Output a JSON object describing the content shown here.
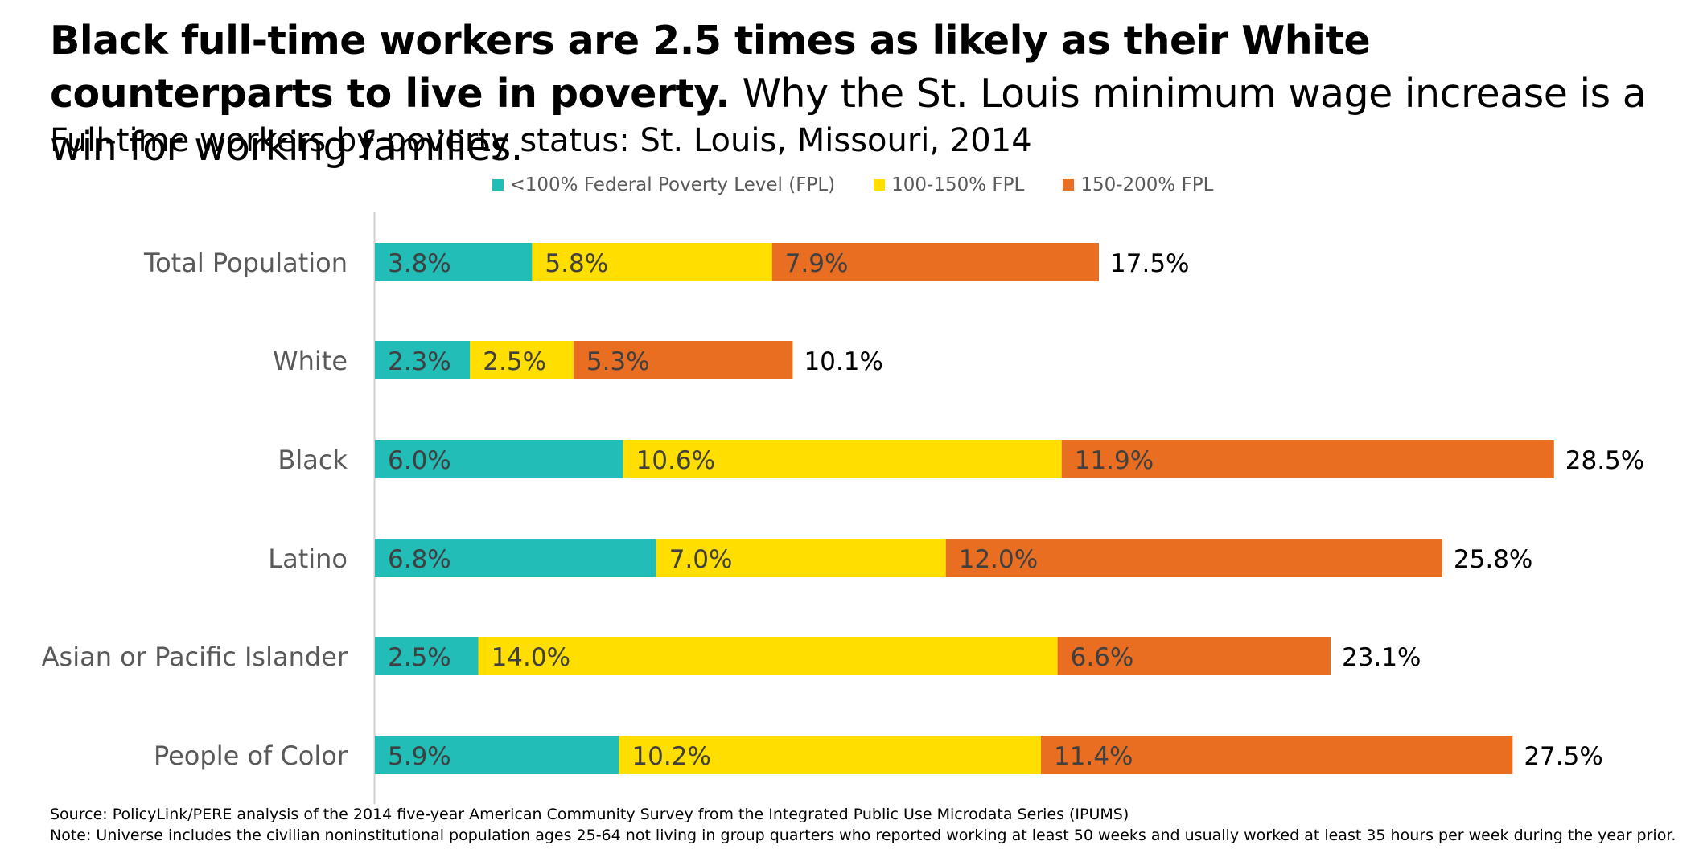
{
  "title": {
    "bold": "Black full-time workers are 2.5 times as likely as their White counterparts to live in poverty.",
    "regular": "Why the St. Louis minimum wage increase is a win for working families."
  },
  "colors": {
    "teal": "#22bdb7",
    "yellow": "#ffde00",
    "orange": "#e96e22",
    "axis": "#d0d0d0",
    "category_text": "#595959",
    "segment_text": "#404040"
  },
  "chart_data": {
    "type": "bar",
    "orientation": "horizontal",
    "stacked": true,
    "title": "Full-time workers by poverty status: St. Louis, Missouri, 2014",
    "legend_position": "top",
    "grid": false,
    "categories": [
      "Total Population",
      "White",
      "Black",
      "Latino",
      "Asian or Pacific Islander",
      "People of Color"
    ],
    "series": [
      {
        "name": "<100% Federal Poverty Level (FPL)",
        "values": [
          3.8,
          2.3,
          6.0,
          6.8,
          2.5,
          5.9
        ],
        "labels": [
          "3.8%",
          "2.3%",
          "6.0%",
          "6.8%",
          "2.5%",
          "5.9%"
        ]
      },
      {
        "name": "100-150% FPL",
        "values": [
          5.8,
          2.5,
          10.6,
          7.0,
          14.0,
          10.2
        ],
        "labels": [
          "5.8%",
          "2.5%",
          "10.6%",
          "7.0%",
          "14.0%",
          "10.2%"
        ]
      },
      {
        "name": "150-200% FPL",
        "values": [
          7.9,
          5.3,
          11.9,
          12.0,
          6.6,
          11.4
        ],
        "labels": [
          "7.9%",
          "5.3%",
          "11.9%",
          "12.0%",
          "6.6%",
          "11.4%"
        ]
      }
    ],
    "totals": [
      17.5,
      10.1,
      28.5,
      25.8,
      23.1,
      27.5
    ],
    "total_labels": [
      "17.5%",
      "10.1%",
      "28.5%",
      "25.8%",
      "23.1%",
      "27.5%"
    ],
    "xlim": [
      0,
      30
    ]
  },
  "footer": {
    "source": "Source: PolicyLink/PERE analysis of the 2014 five-year American Community Survey from the Integrated Public Use Microdata Series (IPUMS)",
    "note": "Note: Universe includes the civilian noninstitutional population ages 25-64 not living in group quarters who reported working at least 50 weeks and usually worked at least 35 hours per week during the year prior."
  }
}
